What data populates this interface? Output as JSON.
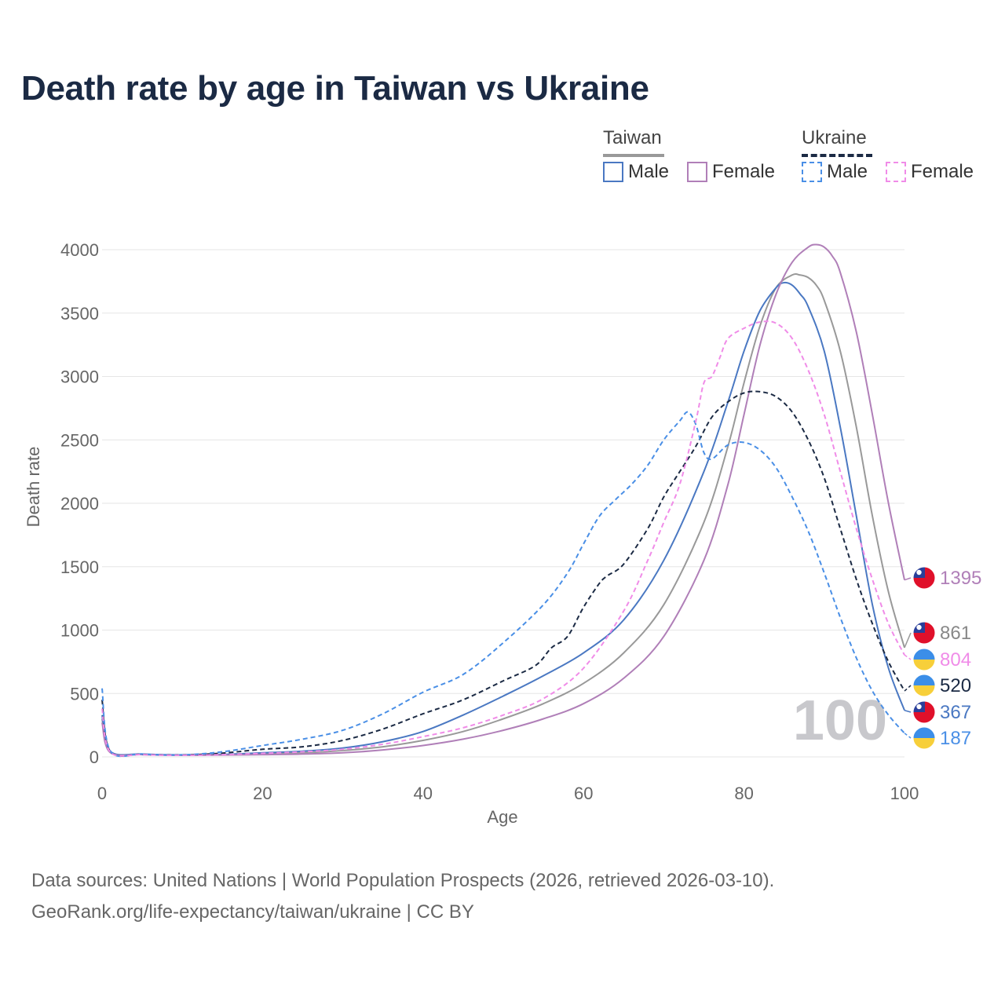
{
  "title": "Death rate by age in Taiwan vs Ukraine",
  "legend": {
    "groups": [
      {
        "name": "Taiwan",
        "items": [
          "Male",
          "Female"
        ]
      },
      {
        "name": "Ukraine",
        "items": [
          "Male",
          "Female"
        ]
      }
    ]
  },
  "source_line1": "Data sources: United Nations | World Population Prospects (2026, retrieved 2026-03-10).",
  "source_line2": "GeoRank.org/life-expectancy/taiwan/ukraine | CC BY",
  "year_label": "100",
  "colors": {
    "taiwan_male": "#4a78c2",
    "taiwan_female": "#b07fb8",
    "taiwan_total": "#999999",
    "ukraine_male": "#4a8fe6",
    "ukraine_female": "#f08ce8",
    "ukraine_total": "#1b2a44"
  },
  "chart_data": {
    "type": "line",
    "title": "Death rate by age in Taiwan vs Ukraine",
    "xlabel": "Age",
    "ylabel": "Death rate",
    "xlim": [
      0,
      100
    ],
    "ylim": [
      0,
      4000
    ],
    "xticks": [
      0,
      20,
      40,
      60,
      80,
      100
    ],
    "yticks": [
      0,
      500,
      1000,
      1500,
      2000,
      2500,
      3000,
      3500,
      4000
    ],
    "series": [
      {
        "name": "Taiwan Total",
        "key": "taiwan_total",
        "dashed": false,
        "end_label": "861",
        "flag": "taiwan",
        "x": [
          0,
          1,
          5,
          10,
          15,
          20,
          25,
          30,
          35,
          40,
          45,
          50,
          55,
          60,
          65,
          70,
          75,
          78,
          80,
          82,
          84,
          86,
          87,
          88,
          89,
          90,
          92,
          94,
          96,
          98,
          100
        ],
        "y": [
          300,
          40,
          20,
          15,
          18,
          25,
          32,
          50,
          80,
          130,
          200,
          300,
          420,
          580,
          820,
          1200,
          1850,
          2450,
          2950,
          3400,
          3700,
          3800,
          3800,
          3780,
          3720,
          3600,
          3200,
          2600,
          1900,
          1300,
          861
        ]
      },
      {
        "name": "Taiwan Male",
        "key": "taiwan_male",
        "dashed": false,
        "end_label": "367",
        "flag": "taiwan",
        "x": [
          0,
          1,
          5,
          10,
          15,
          20,
          25,
          30,
          35,
          40,
          45,
          50,
          55,
          60,
          65,
          70,
          75,
          78,
          80,
          82,
          84,
          85,
          86,
          87,
          88,
          90,
          92,
          94,
          96,
          98,
          100
        ],
        "y": [
          330,
          45,
          22,
          16,
          20,
          32,
          45,
          70,
          120,
          200,
          330,
          480,
          640,
          820,
          1080,
          1550,
          2250,
          2800,
          3200,
          3520,
          3700,
          3740,
          3720,
          3650,
          3550,
          3200,
          2600,
          1900,
          1200,
          700,
          367
        ]
      },
      {
        "name": "Taiwan Female",
        "key": "taiwan_female",
        "dashed": false,
        "end_label": "1395",
        "flag": "taiwan",
        "x": [
          0,
          1,
          5,
          10,
          15,
          20,
          25,
          30,
          35,
          40,
          45,
          50,
          55,
          60,
          65,
          70,
          75,
          78,
          80,
          82,
          84,
          86,
          88,
          89,
          90,
          91,
          92,
          94,
          96,
          98,
          100
        ],
        "y": [
          270,
          35,
          18,
          13,
          15,
          18,
          22,
          32,
          55,
          90,
          140,
          210,
          300,
          420,
          620,
          950,
          1550,
          2150,
          2700,
          3250,
          3650,
          3900,
          4020,
          4040,
          4020,
          3950,
          3820,
          3350,
          2700,
          2000,
          1395
        ]
      },
      {
        "name": "Ukraine Total",
        "key": "ukraine_total",
        "dashed": true,
        "end_label": "520",
        "flag": "ukraine",
        "x": [
          0,
          1,
          5,
          10,
          15,
          20,
          25,
          30,
          35,
          40,
          45,
          50,
          54,
          56,
          58,
          60,
          62,
          63,
          65,
          68,
          70,
          72,
          74,
          76,
          78,
          80,
          82,
          84,
          86,
          88,
          90,
          92,
          94,
          96,
          98,
          100
        ],
        "y": [
          450,
          45,
          20,
          15,
          30,
          60,
          80,
          130,
          220,
          340,
          450,
          600,
          720,
          860,
          950,
          1180,
          1370,
          1430,
          1520,
          1800,
          2050,
          2250,
          2450,
          2680,
          2800,
          2870,
          2880,
          2840,
          2720,
          2500,
          2200,
          1800,
          1400,
          1050,
          750,
          520
        ]
      },
      {
        "name": "Ukraine Male",
        "key": "ukraine_male",
        "dashed": true,
        "end_label": "187",
        "flag": "ukraine",
        "x": [
          0,
          1,
          5,
          10,
          15,
          20,
          25,
          30,
          35,
          40,
          45,
          50,
          55,
          58,
          60,
          62,
          64,
          66,
          68,
          70,
          72,
          73,
          74,
          75,
          76,
          78,
          80,
          82,
          84,
          86,
          88,
          90,
          92,
          94,
          96,
          98,
          100
        ],
        "y": [
          540,
          50,
          22,
          16,
          40,
          90,
          140,
          210,
          340,
          510,
          650,
          900,
          1200,
          1450,
          1680,
          1900,
          2030,
          2150,
          2300,
          2500,
          2650,
          2720,
          2620,
          2400,
          2350,
          2460,
          2480,
          2420,
          2280,
          2050,
          1780,
          1450,
          1100,
          780,
          520,
          330,
          187
        ]
      },
      {
        "name": "Ukraine Female",
        "key": "ukraine_female",
        "dashed": true,
        "end_label": "804",
        "flag": "ukraine",
        "x": [
          0,
          1,
          5,
          10,
          15,
          20,
          25,
          30,
          35,
          40,
          45,
          50,
          55,
          60,
          65,
          68,
          70,
          72,
          74,
          75,
          76,
          77,
          78,
          80,
          82,
          84,
          86,
          88,
          90,
          92,
          94,
          96,
          98,
          100
        ],
        "y": [
          380,
          40,
          18,
          13,
          18,
          28,
          40,
          60,
          100,
          160,
          230,
          330,
          460,
          700,
          1150,
          1550,
          1850,
          2150,
          2650,
          2950,
          3000,
          3150,
          3300,
          3380,
          3430,
          3420,
          3300,
          3050,
          2700,
          2250,
          1800,
          1400,
          1050,
          804
        ]
      }
    ]
  }
}
